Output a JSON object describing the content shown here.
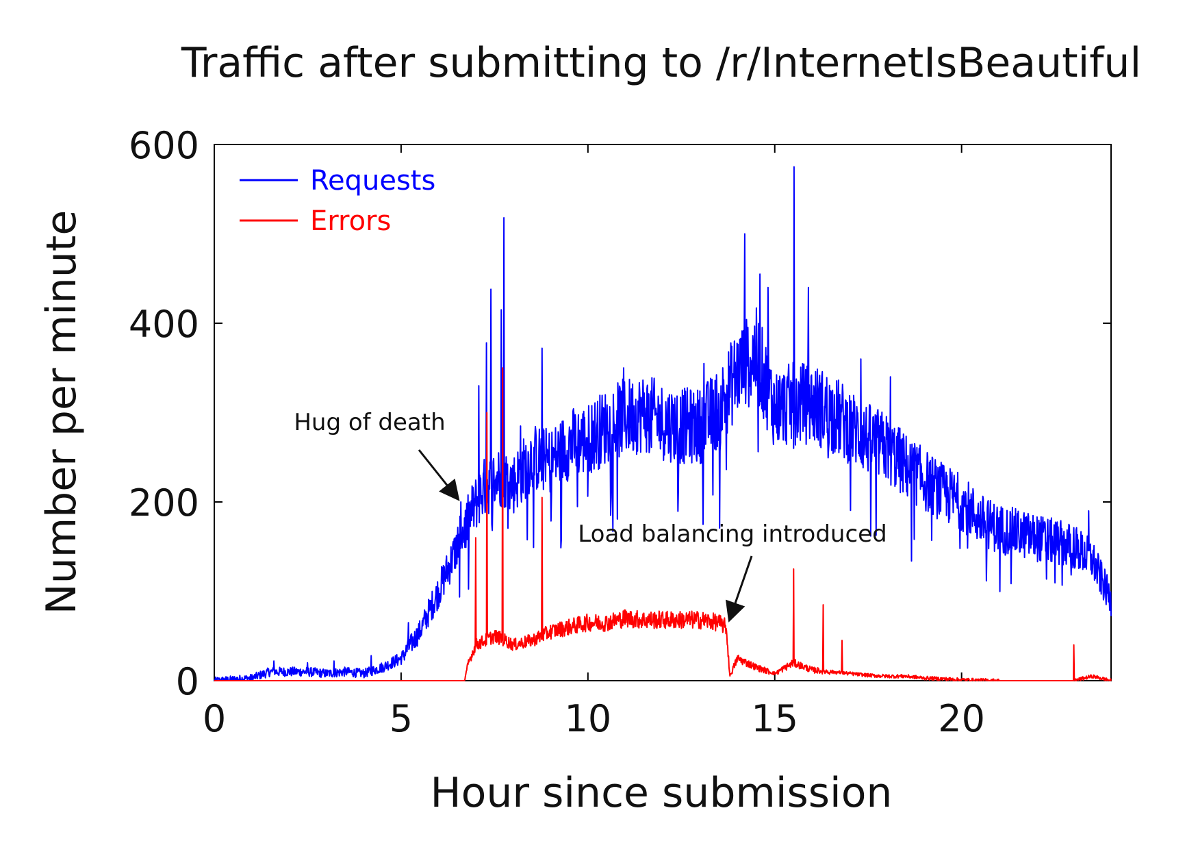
{
  "chart_data": {
    "type": "line",
    "title": "Traffic after submitting to /r/InternetIsBeautiful",
    "xlabel": "Hour since submission",
    "ylabel": "Number per minute",
    "xlim": [
      0,
      24
    ],
    "ylim": [
      0,
      600
    ],
    "x_ticks": [
      0,
      5,
      10,
      15,
      20
    ],
    "y_ticks": [
      0,
      200,
      400,
      600
    ],
    "legend_position": "top-left",
    "colors": {
      "requests": "#0000ff",
      "errors": "#ff0000",
      "axis": "#000000"
    },
    "series": [
      {
        "name": "Requests",
        "color": "#0000ff",
        "x": [
          0,
          1,
          1.5,
          2,
          2.5,
          3,
          3.5,
          4,
          4.5,
          5,
          5.5,
          6,
          6.5,
          6.9,
          7.2,
          7.5,
          7.7,
          8,
          8.5,
          9,
          9.5,
          10,
          10.5,
          11,
          11.5,
          12,
          12.5,
          13,
          13.5,
          14,
          14.5,
          15,
          15.5,
          16,
          16.5,
          17,
          17.5,
          18,
          18.5,
          19,
          19.5,
          20,
          20.5,
          21,
          21.5,
          22,
          22.5,
          23,
          23.5,
          24
        ],
        "y": [
          0,
          3,
          10,
          10,
          10,
          8,
          10,
          8,
          15,
          25,
          55,
          100,
          150,
          190,
          215,
          225,
          230,
          220,
          250,
          245,
          265,
          270,
          285,
          295,
          300,
          290,
          285,
          285,
          305,
          345,
          365,
          305,
          310,
          310,
          300,
          285,
          270,
          260,
          240,
          225,
          210,
          200,
          180,
          170,
          165,
          160,
          155,
          150,
          135,
          90
        ]
      },
      {
        "name": "Errors",
        "color": "#ff0000",
        "x": [
          0,
          6.7,
          6.8,
          7.0,
          7.5,
          7.8,
          8,
          8.5,
          9,
          9.5,
          10,
          10.5,
          11,
          11.5,
          12,
          12.5,
          13,
          13.5,
          13.7,
          13.8,
          14,
          14.5,
          15,
          15.5,
          16,
          16.5,
          17,
          17.5,
          18,
          18.5,
          19,
          19.5,
          20,
          21,
          22,
          23,
          23.5,
          24
        ],
        "y": [
          0,
          0,
          20,
          40,
          50,
          45,
          40,
          45,
          55,
          60,
          65,
          65,
          70,
          68,
          68,
          68,
          68,
          65,
          60,
          5,
          25,
          15,
          8,
          20,
          12,
          10,
          8,
          6,
          5,
          5,
          3,
          2,
          1,
          0,
          0,
          0,
          5,
          0
        ]
      }
    ],
    "spikes": {
      "requests": [
        [
          1.6,
          22
        ],
        [
          2.5,
          20
        ],
        [
          3.2,
          22
        ],
        [
          4.2,
          28
        ],
        [
          5.2,
          65
        ],
        [
          6.6,
          200
        ],
        [
          7.08,
          330
        ],
        [
          7.28,
          378
        ],
        [
          7.4,
          438
        ],
        [
          7.68,
          415
        ],
        [
          7.75,
          518
        ],
        [
          8.2,
          285
        ],
        [
          8.77,
          372
        ],
        [
          10.95,
          350
        ],
        [
          13.1,
          355
        ],
        [
          14.2,
          500
        ],
        [
          14.6,
          455
        ],
        [
          14.82,
          440
        ],
        [
          15.3,
          300
        ],
        [
          15.52,
          575
        ],
        [
          15.9,
          440
        ],
        [
          16.6,
          320
        ],
        [
          17.3,
          360
        ],
        [
          18.1,
          340
        ],
        [
          23.4,
          190
        ]
      ],
      "errors": [
        [
          7.0,
          160
        ],
        [
          7.3,
          300
        ],
        [
          7.72,
          350
        ],
        [
          8.77,
          205
        ],
        [
          15.5,
          125
        ],
        [
          16.3,
          85
        ],
        [
          16.8,
          45
        ],
        [
          23.0,
          40
        ]
      ]
    },
    "annotations": [
      {
        "text": "Hug of death",
        "point": [
          6.5,
          200
        ]
      },
      {
        "text": "Load balancing introduced",
        "point": [
          13.8,
          65
        ]
      }
    ]
  }
}
